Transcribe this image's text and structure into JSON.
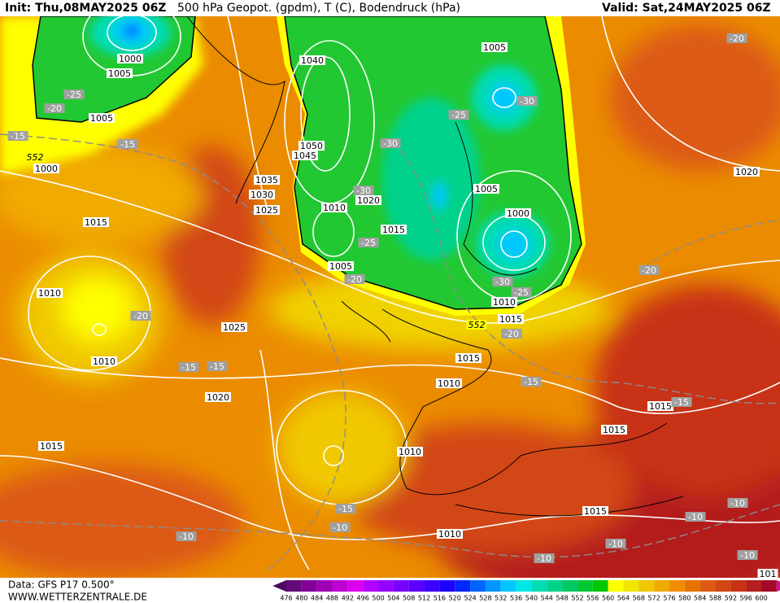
{
  "header": {
    "init": "Init: Thu,08MAY2025 06Z",
    "title": "500 hPa Geopot. (gpdm), T (C), Bodendruck (hPa)",
    "valid": "Valid: Sat,24MAY2025 06Z"
  },
  "footer": {
    "source": "Data: GFS P17 0.500°",
    "site": "WWW.WETTERZENTRALE.DE"
  },
  "colorbar": {
    "labels": [
      "476",
      "480",
      "484",
      "488",
      "492",
      "496",
      "500",
      "504",
      "508",
      "512",
      "516",
      "520",
      "524",
      "528",
      "532",
      "536",
      "540",
      "544",
      "548",
      "552",
      "556",
      "560",
      "564",
      "568",
      "572",
      "576",
      "580",
      "584",
      "588",
      "592",
      "596",
      "600"
    ],
    "colors": [
      "#4a0a64",
      "#640a7a",
      "#820096",
      "#a000b4",
      "#be00d2",
      "#dc00f0",
      "#b400ff",
      "#9600ff",
      "#7800ff",
      "#5a00ff",
      "#3c00ff",
      "#1e00ff",
      "#0028ff",
      "#0064ff",
      "#0096ff",
      "#00c8ff",
      "#00e6e6",
      "#00dcb4",
      "#00d28c",
      "#00c864",
      "#00c832",
      "#00c800",
      "#ffff00",
      "#f0e600",
      "#f0c800",
      "#f0aa00",
      "#f08c00",
      "#e67300",
      "#dc5a14",
      "#d24614",
      "#c83214",
      "#b41e1e",
      "#a00a28",
      "#d2148c"
    ]
  },
  "map": {
    "pressure_labels": [
      "1000",
      "1005",
      "1005",
      "1000",
      "1015",
      "1010",
      "1010",
      "1025",
      "1020",
      "1015",
      "1040",
      "1050",
      "1045",
      "1035",
      "1030",
      "1025",
      "1020",
      "1010",
      "1015",
      "1005",
      "1005",
      "1005",
      "1000",
      "1010",
      "1015",
      "1015",
      "1010",
      "1010",
      "1015",
      "1015",
      "1015",
      "1010",
      "1020",
      "101"
    ],
    "temperature_labels": [
      "-25",
      "-20",
      "-15",
      "-15",
      "-20",
      "-15",
      "-15",
      "-30",
      "-30",
      "-25",
      "-20",
      "-25",
      "-30",
      "-30",
      "-25",
      "-20",
      "-15",
      "-20",
      "-15",
      "-15",
      "-10",
      "-10",
      "-10",
      "-10",
      "-10",
      "-10",
      "-10",
      "-20"
    ],
    "height_labels": [
      "552",
      "552"
    ]
  }
}
